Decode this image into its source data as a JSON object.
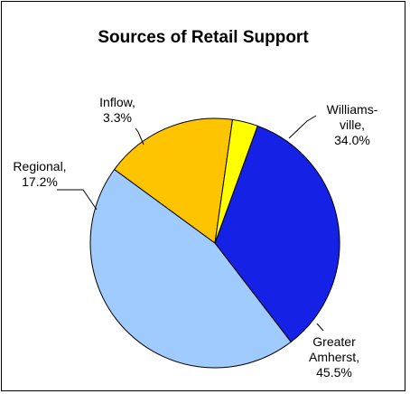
{
  "chart_data": {
    "type": "pie",
    "title": "Sources of Retail Support",
    "slices": [
      {
        "label_lines": [
          "Williams-",
          "ville,",
          "34.0%"
        ],
        "value": 34.0,
        "color": "#1522E6"
      },
      {
        "label_lines": [
          "Greater",
          "Amherst,",
          "45.5%"
        ],
        "value": 45.5,
        "color": "#9FCBFF"
      },
      {
        "label_lines": [
          "Regional,",
          "17.2%"
        ],
        "value": 17.2,
        "color": "#FFC400"
      },
      {
        "label_lines": [
          "Inflow,",
          "3.3%"
        ],
        "value": 3.3,
        "color": "#FFFF00"
      }
    ],
    "legend": "none"
  }
}
